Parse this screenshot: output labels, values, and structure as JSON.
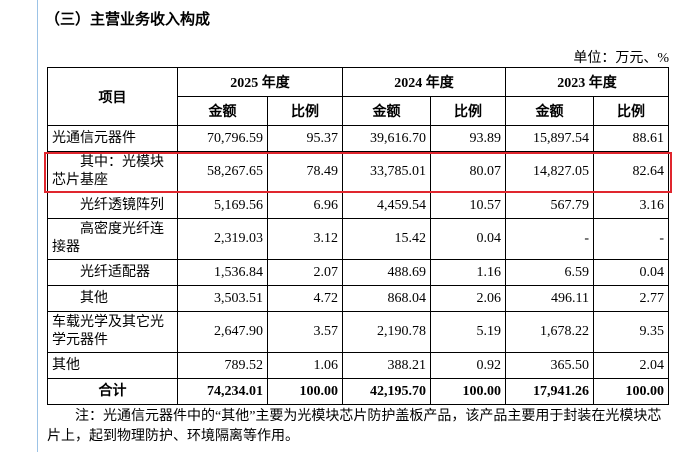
{
  "title": "（三）主营业务收入构成",
  "unit": "单位：万元、%",
  "table": {
    "item_header": "项目",
    "years": [
      "2025 年度",
      "2024 年度",
      "2023 年度"
    ],
    "subheaders": [
      "金额",
      "比例",
      "金额",
      "比例",
      "金额",
      "比例"
    ],
    "rows": [
      [
        "光通信元器件",
        "70,796.59",
        "95.37",
        "39,616.70",
        "93.89",
        "15,897.54",
        "88.61"
      ],
      [
        "其中：光模块芯片基座",
        "58,267.65",
        "78.49",
        "33,785.01",
        "80.07",
        "14,827.05",
        "82.64"
      ],
      [
        "光纤透镜阵列",
        "5,169.56",
        "6.96",
        "4,459.54",
        "10.57",
        "567.79",
        "3.16"
      ],
      [
        "高密度光纤连接器",
        "2,319.03",
        "3.12",
        "15.42",
        "0.04",
        "-",
        "-"
      ],
      [
        "光纤适配器",
        "1,536.84",
        "2.07",
        "488.69",
        "1.16",
        "6.59",
        "0.04"
      ],
      [
        "其他",
        "3,503.51",
        "4.72",
        "868.04",
        "2.06",
        "496.11",
        "2.77"
      ],
      [
        "车载光学及其它光学元器件",
        "2,647.90",
        "3.57",
        "2,190.78",
        "5.19",
        "1,678.22",
        "9.35"
      ],
      [
        "其他",
        "789.52",
        "1.06",
        "388.21",
        "0.92",
        "365.50",
        "2.04"
      ],
      [
        "合计",
        "74,234.01",
        "100.00",
        "42,195.70",
        "100.00",
        "17,941.26",
        "100.00"
      ]
    ]
  },
  "note": "注：光通信元器件中的“其他”主要为光模块芯片防护盖板产品，该产品主要用于封装在光模块芯片上，起到物理防护、环境隔离等作用。"
}
